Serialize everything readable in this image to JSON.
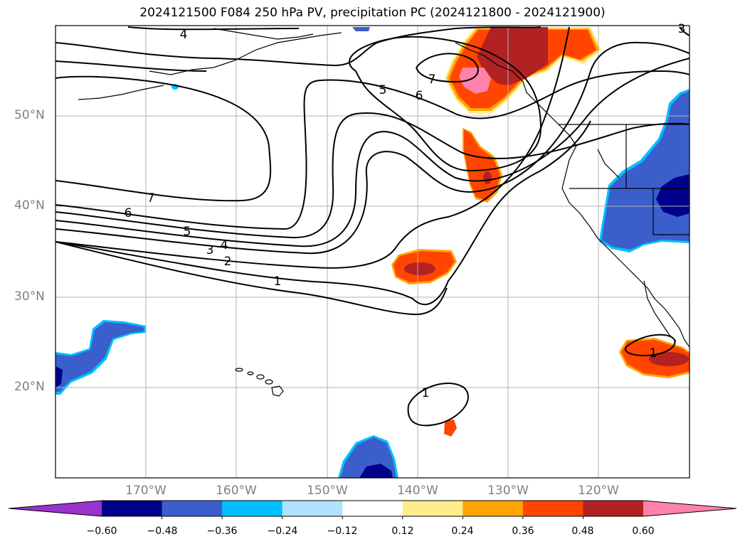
{
  "title": "2024121500 F084 250 hPa PV, precipitation PC (2024121800 - 2024121900)",
  "map": {
    "lat_labels": [
      "50°N",
      "40°N",
      "30°N",
      "20°N"
    ],
    "lon_labels": [
      "170°W",
      "160°W",
      "150°W",
      "140°W",
      "130°W",
      "120°W"
    ]
  },
  "contour_labels": [
    "4",
    "7",
    "5",
    "6",
    "7",
    "6",
    "5",
    "4",
    "3",
    "2",
    "1",
    "1",
    "1",
    "3"
  ],
  "colorbar": {
    "ticks": [
      "−0.60",
      "−0.48",
      "−0.36",
      "−0.24",
      "−0.12",
      "0.12",
      "0.24",
      "0.36",
      "0.48",
      "0.60"
    ],
    "colors": [
      "#9a32cd",
      "#00008b",
      "#3a5fcd",
      "#00bfff",
      "#b0e2ff",
      "#ffffff",
      "#ffec8b",
      "#ffa500",
      "#ff4500",
      "#b22222",
      "#ff82ab"
    ]
  }
}
